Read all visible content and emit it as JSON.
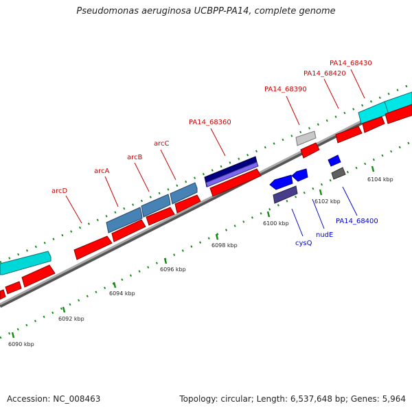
{
  "title": "Pseudomonas aeruginosa UCBPP-PA14, complete genome",
  "footer": {
    "accession": "Accession: NC_008463",
    "summary": "Topology: circular; Length: 6,537,648 bp; Genes: 5,964"
  },
  "scale_labels": [
    "6090 kbp",
    "6092 kbp",
    "6094 kbp",
    "6096 kbp",
    "6098 kbp",
    "6100 kbp",
    "6102 kbp",
    "6104 kbp"
  ],
  "forward_labels": [
    "arcD",
    "arcA",
    "arcB",
    "arcC",
    "PA14_68360",
    "PA14_68390",
    "PA14_68420",
    "PA14_68430"
  ],
  "reverse_labels": [
    "cysQ",
    "nudE",
    "PA14_68400"
  ],
  "colors": {
    "cds": "#ff0000",
    "cyan_feature": "#00e5e5",
    "steelblue_feature": "#4682b4",
    "navy_feature": "#000080",
    "blue_cds": "#0000ff",
    "label_forward": "#cc0000",
    "label_reverse": "#0000cc",
    "tick": "#1a8a1a",
    "backbone": "#888888"
  }
}
